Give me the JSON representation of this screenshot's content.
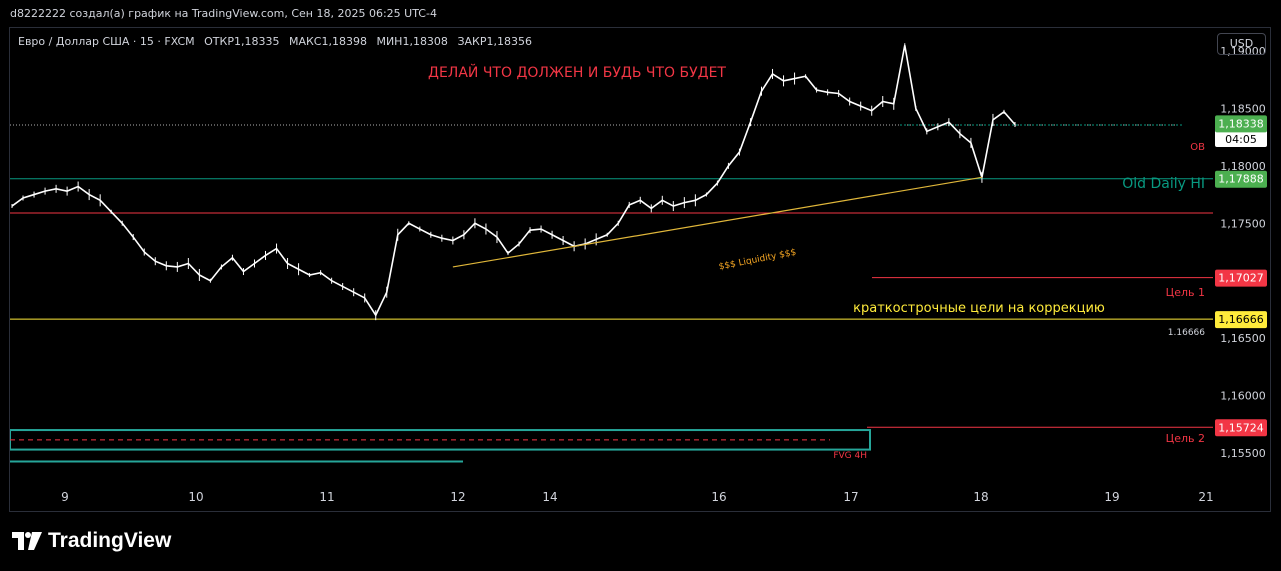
{
  "header": {
    "author_line": "d8222222 создал(а) график на TradingView.com, Сен 18, 2025 06:25 UTC-4"
  },
  "symbol": {
    "name": "Евро / Доллар США · 15 · FXCM",
    "open": "ОТКР1,18335",
    "high": "МАКС1,18398",
    "low": "МИН1,18308",
    "close": "ЗАКР1,18356"
  },
  "currency_button": "USD",
  "logo_text": "TradingView",
  "colors": {
    "background": "#000000",
    "candles": "#ffffff",
    "support_line": "#089981",
    "resistance_line": "#f23645",
    "target_line": "#f23645",
    "level_yellow": "#ffeb3b",
    "trend_line": "#e0b73a",
    "fvg_box": "#26a69a"
  },
  "chart_data": {
    "type": "line",
    "title": "ДЕЛАЙ ЧТО ДОЛЖЕН И БУДЬ ЧТО БУДЕТ",
    "x_tick_labels": [
      "9",
      "10",
      "11",
      "12",
      "14",
      "16",
      "17",
      "18",
      "19",
      "21"
    ],
    "y_tick_labels": [
      "1,19000",
      "1,18500",
      "1,18000",
      "1,17500",
      "1,16500",
      "1,16000",
      "1,15500"
    ],
    "ylim": [
      1.153,
      1.192
    ],
    "series": [
      {
        "values": [
          1.1765,
          1.1772,
          1.1775,
          1.1778,
          1.178,
          1.1778,
          1.1782,
          1.1775,
          1.177,
          1.176,
          1.175,
          1.1738,
          1.1725,
          1.1717,
          1.1713,
          1.1712,
          1.1715,
          1.1705,
          1.17,
          1.1712,
          1.172,
          1.1708,
          1.1715,
          1.1722,
          1.1728,
          1.1715,
          1.171,
          1.1705,
          1.1707,
          1.17,
          1.1695,
          1.169,
          1.1685,
          1.167,
          1.169,
          1.174,
          1.175,
          1.1745,
          1.174,
          1.1737,
          1.1735,
          1.174,
          1.175,
          1.1745,
          1.1738,
          1.1724,
          1.1732,
          1.1744,
          1.1745,
          1.174,
          1.1735,
          1.173,
          1.1732,
          1.1736,
          1.174,
          1.175,
          1.1766,
          1.177,
          1.1763,
          1.177,
          1.1765,
          1.1768,
          1.177,
          1.1775,
          1.1785,
          1.18,
          1.1812,
          1.1838,
          1.1865,
          1.188,
          1.1874,
          1.1876,
          1.1878,
          1.1866,
          1.1864,
          1.1863,
          1.1856,
          1.1852,
          1.1848,
          1.1856,
          1.1854,
          1.1905,
          1.185,
          1.183,
          1.1834,
          1.1838,
          1.1828,
          1.182,
          1.179,
          1.184,
          1.1847,
          1.1836
        ]
      }
    ],
    "price_labels": [
      {
        "text": "1,18356",
        "sub": "04:05",
        "style": "current"
      },
      {
        "text": "1,18338",
        "style": "green"
      },
      {
        "text": "1,17888",
        "style": "green"
      },
      {
        "text": "1,17027",
        "style": "red"
      },
      {
        "text": "1,16666",
        "style": "yellow"
      },
      {
        "text": "1,15724",
        "style": "red"
      }
    ],
    "annotations": {
      "ob": "OB",
      "old_daily_hi": "Old Daily HI",
      "liquidity": "$$$ Liquidity $$$",
      "target1": "Цель 1",
      "target2": "Цель 2",
      "level_1_16666": "1.16666",
      "short_targets": "краткострочные цели на коррекцию",
      "fvg": "FVG 4H"
    }
  }
}
